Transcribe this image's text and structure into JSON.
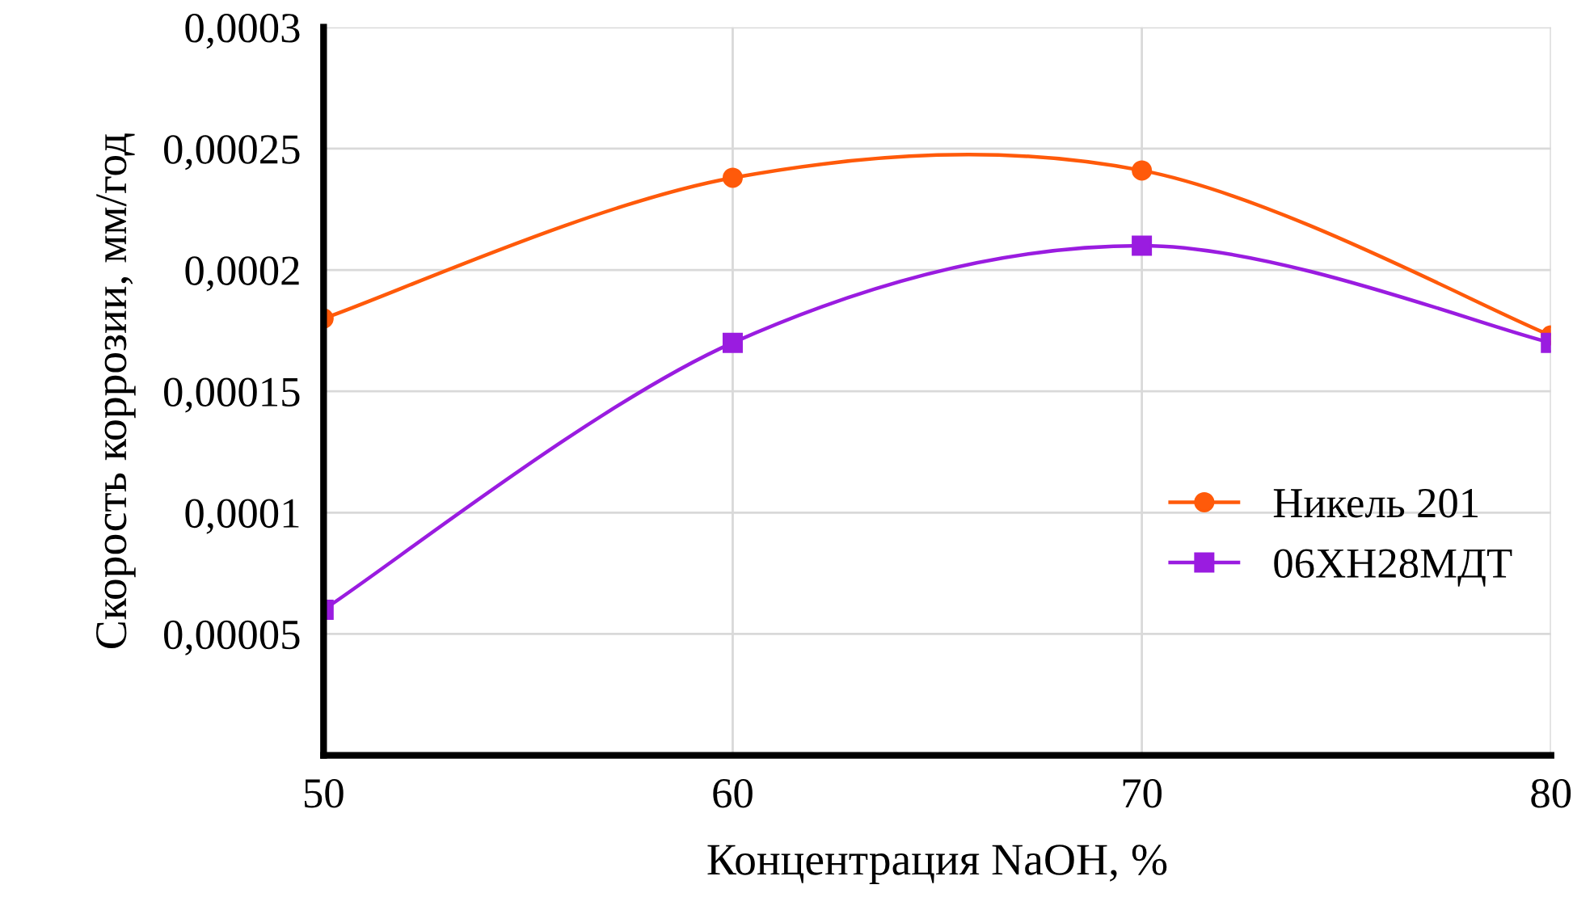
{
  "chart_data": {
    "type": "line",
    "xlabel": "Концентрация NaOH, %",
    "ylabel": "Скорость коррозии, мм/год",
    "x": [
      50,
      60,
      70,
      80
    ],
    "series": [
      {
        "name": "Никель 201",
        "color": "#ff5a0a",
        "marker": "circle",
        "values": [
          0.00018,
          0.000238,
          0.000241,
          0.000173
        ]
      },
      {
        "name": "06ХН28МДТ",
        "color": "#9a1ce0",
        "marker": "square",
        "values": [
          6e-05,
          0.00017,
          0.00021,
          0.00017
        ]
      }
    ],
    "xlim": [
      50,
      80
    ],
    "xticks": [
      50,
      60,
      70,
      80
    ],
    "ylim": [
      0,
      0.0003
    ],
    "yticks": [
      {
        "value": 0,
        "label": null
      },
      {
        "value": 5e-05,
        "label": "0,00005"
      },
      {
        "value": 0.0001,
        "label": "0,0001"
      },
      {
        "value": 0.00015,
        "label": "0,00015"
      },
      {
        "value": 0.0002,
        "label": "0,0002"
      },
      {
        "value": 0.00025,
        "label": "0,00025"
      },
      {
        "value": 0.0003,
        "label": "0,0003"
      }
    ],
    "grid": true,
    "legend": "center right",
    "line_style": "solid"
  }
}
